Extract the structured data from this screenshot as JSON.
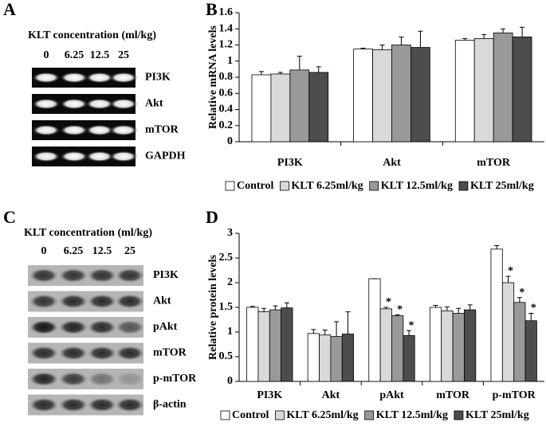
{
  "panel_labels": [
    "A",
    "B",
    "C",
    "D"
  ],
  "blots": [
    {
      "title": "KLT concentration (ml/kg)",
      "lanes": [
        "0",
        "6.25",
        "12.5",
        "25"
      ],
      "bands": [
        "PI3K",
        "Akt",
        "mTOR",
        "GAPDH"
      ]
    },
    {
      "title": "KLT concentration (ml/kg)",
      "lanes": [
        "0",
        "6.25",
        "12.5",
        "25"
      ],
      "bands": [
        "PI3K",
        "Akt",
        "pAkt",
        "mTOR",
        "p-mTOR",
        "β-actin"
      ]
    }
  ],
  "chart_data": [
    {
      "type": "bar",
      "ylabel": "Relative mRNA levels",
      "categories": [
        "PI3K",
        "Akt",
        "mTOR"
      ],
      "series": [
        {
          "name": "Control",
          "color": "#ffffff",
          "values": [
            0.83,
            1.15,
            1.26
          ],
          "errors": [
            0.04,
            0.01,
            0.02
          ]
        },
        {
          "name": "KLT 6.25ml/kg",
          "color": "#d9d9d9",
          "values": [
            0.84,
            1.14,
            1.28
          ],
          "errors": [
            0.02,
            0.06,
            0.05
          ]
        },
        {
          "name": "KLT 12.5ml/kg",
          "color": "#999999",
          "values": [
            0.89,
            1.2,
            1.35
          ],
          "errors": [
            0.17,
            0.1,
            0.05
          ]
        },
        {
          "name": "KLT 25ml/kg",
          "color": "#4d4d4d",
          "values": [
            0.86,
            1.17,
            1.3
          ],
          "errors": [
            0.07,
            0.2,
            0.12
          ]
        }
      ],
      "ylim": [
        0,
        1.6
      ],
      "yticks": [
        0,
        0.2,
        0.4,
        0.6,
        0.8,
        1,
        1.2,
        1.4,
        1.6
      ]
    },
    {
      "type": "bar",
      "ylabel": "Relative protein levels",
      "categories": [
        "PI3K",
        "Akt",
        "pAkt",
        "mTOR",
        "p-mTOR"
      ],
      "series": [
        {
          "name": "Control",
          "color": "#ffffff",
          "values": [
            1.5,
            0.97,
            2.08,
            1.5,
            2.68
          ],
          "errors": [
            0.02,
            0.08,
            0,
            0.04,
            0.07
          ],
          "markers": [
            null,
            null,
            null,
            null,
            null
          ]
        },
        {
          "name": "KLT 6.25ml/kg",
          "color": "#d9d9d9",
          "values": [
            1.41,
            0.94,
            1.47,
            1.43,
            2.0
          ],
          "errors": [
            0.07,
            0.1,
            0.03,
            0.08,
            0.13
          ],
          "markers": [
            null,
            null,
            "*",
            null,
            "*"
          ]
        },
        {
          "name": "KLT 12.5ml/kg",
          "color": "#999999",
          "values": [
            1.45,
            0.91,
            1.33,
            1.38,
            1.6
          ],
          "errors": [
            0.08,
            0.3,
            0.02,
            0.1,
            0.1
          ],
          "markers": [
            null,
            null,
            "*",
            null,
            "*"
          ]
        },
        {
          "name": "KLT 25ml/kg",
          "color": "#4d4d4d",
          "values": [
            1.49,
            0.96,
            0.93,
            1.45,
            1.23
          ],
          "errors": [
            0.1,
            0.45,
            0.1,
            0.1,
            0.15
          ],
          "markers": [
            null,
            null,
            "*",
            null,
            "*"
          ]
        }
      ],
      "ylim": [
        0,
        3
      ],
      "yticks": [
        0,
        0.5,
        1,
        1.5,
        2,
        2.5,
        3
      ]
    }
  ]
}
